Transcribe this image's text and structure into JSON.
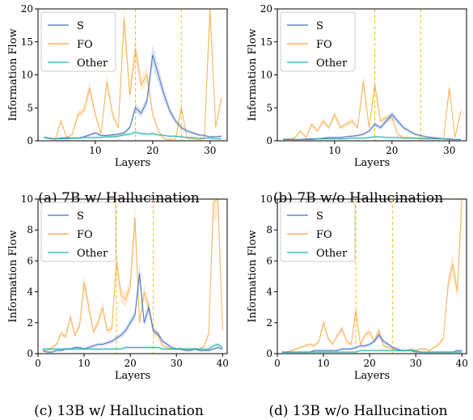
{
  "figure": {
    "colors": {
      "S": "#4472c4",
      "FO": "#f4a53a",
      "Other": "#20b2aa",
      "vline": "#f5c400"
    },
    "chart_data": [
      {
        "type": "line",
        "caption": "(a) 7B w/ Hallucination",
        "xlabel": "Layers",
        "ylabel": "Information Flow",
        "xlim": [
          0,
          33
        ],
        "ylim": [
          0,
          20
        ],
        "xticks": [
          "10",
          "20",
          "30"
        ],
        "yticks": [
          "0",
          "5",
          "10",
          "15",
          "20"
        ],
        "legend": "top-left",
        "grid": false,
        "vlines": [
          17,
          25
        ],
        "series": [
          {
            "name": "S",
            "x": [
              1,
              2,
              3,
              4,
              5,
              6,
              7,
              8,
              9,
              10,
              11,
              12,
              13,
              14,
              15,
              16,
              17,
              18,
              19,
              20,
              21,
              22,
              23,
              24,
              25,
              26,
              27,
              28,
              29,
              30,
              31,
              32
            ],
            "values": [
              0.5,
              0.4,
              0.3,
              0.4,
              0.5,
              0.4,
              0.4,
              0.6,
              0.9,
              1.2,
              0.8,
              0.8,
              0.9,
              1.0,
              1.2,
              2.0,
              5.0,
              4.2,
              6.0,
              13.0,
              10.0,
              7.0,
              4.5,
              3.0,
              2.0,
              1.5,
              1.2,
              0.9,
              0.8,
              0.6,
              0.6,
              0.7
            ]
          },
          {
            "name": "FO",
            "x": [
              1,
              2,
              3,
              4,
              5,
              6,
              7,
              8,
              9,
              10,
              11,
              12,
              13,
              14,
              15,
              16,
              17,
              18,
              19,
              20,
              21,
              22,
              23,
              24,
              25,
              26,
              27,
              28,
              29,
              30,
              31,
              32
            ],
            "values": [
              0.5,
              0.3,
              0.2,
              3.0,
              0.5,
              1.0,
              4.0,
              4.5,
              8.0,
              4.0,
              1.0,
              9.0,
              4.0,
              2.0,
              18.5,
              7.0,
              14.0,
              8.5,
              10.0,
              4.0,
              1.5,
              0.3,
              0.2,
              0.3,
              5.0,
              0.4,
              0.3,
              0.2,
              0.3,
              20.0,
              2.0,
              6.5
            ]
          },
          {
            "name": "Other",
            "x": [
              1,
              2,
              3,
              4,
              5,
              6,
              7,
              8,
              9,
              10,
              11,
              12,
              13,
              14,
              15,
              16,
              17,
              18,
              19,
              20,
              21,
              22,
              23,
              24,
              25,
              26,
              27,
              28,
              29,
              30,
              31,
              32
            ],
            "values": [
              0.5,
              0.4,
              0.3,
              0.3,
              0.3,
              0.4,
              0.4,
              0.5,
              0.5,
              0.5,
              0.5,
              0.6,
              0.6,
              0.7,
              0.9,
              1.0,
              1.3,
              1.1,
              1.0,
              1.1,
              0.9,
              0.8,
              0.7,
              0.7,
              0.6,
              0.5,
              0.5,
              0.4,
              0.4,
              0.4,
              0.3,
              0.3
            ]
          }
        ]
      },
      {
        "type": "line",
        "caption": "(b) 7B w/o Hallucination",
        "xlabel": "Layers",
        "ylabel": "Information Flow",
        "xlim": [
          0,
          33
        ],
        "ylim": [
          0,
          20
        ],
        "xticks": [
          "10",
          "20",
          "30"
        ],
        "yticks": [
          "0",
          "5",
          "10",
          "15",
          "20"
        ],
        "legend": "top-left",
        "grid": false,
        "vlines": [
          17,
          25
        ],
        "series": [
          {
            "name": "S",
            "x": [
              1,
              2,
              3,
              4,
              5,
              6,
              7,
              8,
              9,
              10,
              11,
              12,
              13,
              14,
              15,
              16,
              17,
              18,
              19,
              20,
              21,
              22,
              23,
              24,
              25,
              26,
              27,
              28,
              29,
              30,
              31,
              32
            ],
            "values": [
              0.2,
              0.2,
              0.2,
              0.2,
              0.3,
              0.3,
              0.3,
              0.4,
              0.5,
              0.5,
              0.5,
              0.6,
              0.7,
              0.8,
              1.0,
              1.5,
              2.5,
              2.0,
              3.0,
              4.0,
              3.0,
              2.0,
              1.5,
              1.0,
              0.8,
              0.6,
              0.5,
              0.4,
              0.3,
              0.3,
              0.2,
              0.2
            ]
          },
          {
            "name": "FO",
            "x": [
              1,
              2,
              3,
              4,
              5,
              6,
              7,
              8,
              9,
              10,
              11,
              12,
              13,
              14,
              15,
              16,
              17,
              18,
              19,
              20,
              21,
              22,
              23,
              24,
              25,
              26,
              27,
              28,
              29,
              30,
              31,
              32
            ],
            "values": [
              0.3,
              0.3,
              0.4,
              1.5,
              0.5,
              2.5,
              1.5,
              3.0,
              2.0,
              4.0,
              2.0,
              2.5,
              3.0,
              2.0,
              9.0,
              2.0,
              8.5,
              3.0,
              3.5,
              3.5,
              1.0,
              0.5,
              0.5,
              0.4,
              0.5,
              0.4,
              0.3,
              0.3,
              0.3,
              8.0,
              0.5,
              4.5
            ]
          },
          {
            "name": "Other",
            "x": [
              1,
              2,
              3,
              4,
              5,
              6,
              7,
              8,
              9,
              10,
              11,
              12,
              13,
              14,
              15,
              16,
              17,
              18,
              19,
              20,
              21,
              22,
              23,
              24,
              25,
              26,
              27,
              28,
              29,
              30,
              31,
              32
            ],
            "values": [
              0.2,
              0.2,
              0.2,
              0.2,
              0.2,
              0.2,
              0.3,
              0.3,
              0.3,
              0.3,
              0.3,
              0.3,
              0.4,
              0.4,
              0.4,
              0.5,
              0.6,
              0.6,
              0.5,
              0.5,
              0.5,
              0.4,
              0.4,
              0.4,
              0.3,
              0.3,
              0.3,
              0.3,
              0.3,
              0.2,
              0.2,
              0.2
            ]
          }
        ]
      },
      {
        "type": "line",
        "caption": "(c) 13B w/ Hallucination",
        "xlabel": "Layers",
        "ylabel": "Information Flow",
        "xlim": [
          0,
          41
        ],
        "ylim": [
          0,
          10
        ],
        "xticks": [
          "0",
          "10",
          "20",
          "30",
          "40"
        ],
        "yticks": [
          "0",
          "2",
          "4",
          "6",
          "8",
          "10"
        ],
        "legend": "top-left",
        "grid": false,
        "vlines": [
          17,
          25
        ],
        "series": [
          {
            "name": "S",
            "x": [
              1,
              2,
              3,
              4,
              5,
              6,
              7,
              8,
              9,
              10,
              11,
              12,
              13,
              14,
              15,
              16,
              17,
              18,
              19,
              20,
              21,
              22,
              23,
              24,
              25,
              26,
              27,
              28,
              29,
              30,
              31,
              32,
              33,
              34,
              35,
              36,
              37,
              38,
              39,
              40
            ],
            "values": [
              0.2,
              0.1,
              0.1,
              0.2,
              0.2,
              0.3,
              0.3,
              0.4,
              0.4,
              0.3,
              0.4,
              0.5,
              0.6,
              0.6,
              0.7,
              0.8,
              1.0,
              1.2,
              1.5,
              2.0,
              2.5,
              5.2,
              2.0,
              3.0,
              1.5,
              1.3,
              0.8,
              0.6,
              0.4,
              0.3,
              0.3,
              0.2,
              0.2,
              0.3,
              0.2,
              0.2,
              0.2,
              0.3,
              0.4,
              0.3
            ]
          },
          {
            "name": "FO",
            "x": [
              1,
              2,
              3,
              4,
              5,
              6,
              7,
              8,
              9,
              10,
              11,
              12,
              13,
              14,
              15,
              16,
              17,
              18,
              19,
              20,
              21,
              22,
              23,
              24,
              25,
              26,
              27,
              28,
              29,
              30,
              31,
              32,
              33,
              34,
              35,
              36,
              37,
              38,
              39,
              40
            ],
            "values": [
              0.2,
              0.2,
              0.4,
              0.6,
              1.3,
              1.1,
              2.4,
              1.2,
              1.8,
              4.6,
              3.0,
              1.4,
              2.0,
              3.0,
              1.5,
              1.6,
              6.0,
              3.8,
              3.5,
              4.4,
              8.8,
              2.0,
              4.0,
              3.0,
              1.4,
              1.2,
              0.5,
              0.4,
              0.3,
              0.3,
              0.3,
              0.3,
              0.3,
              0.3,
              0.3,
              0.5,
              1.3,
              9.8,
              10.0,
              1.5
            ]
          },
          {
            "name": "Other",
            "x": [
              1,
              2,
              3,
              4,
              5,
              6,
              7,
              8,
              9,
              10,
              11,
              12,
              13,
              14,
              15,
              16,
              17,
              18,
              19,
              20,
              21,
              22,
              23,
              24,
              25,
              26,
              27,
              28,
              29,
              30,
              31,
              32,
              33,
              34,
              35,
              36,
              37,
              38,
              39,
              40
            ],
            "values": [
              0.3,
              0.3,
              0.3,
              0.3,
              0.3,
              0.3,
              0.3,
              0.3,
              0.3,
              0.3,
              0.3,
              0.3,
              0.3,
              0.3,
              0.3,
              0.3,
              0.3,
              0.3,
              0.4,
              0.4,
              0.4,
              0.4,
              0.4,
              0.4,
              0.4,
              0.4,
              0.3,
              0.3,
              0.3,
              0.3,
              0.3,
              0.3,
              0.3,
              0.3,
              0.3,
              0.3,
              0.3,
              0.5,
              0.6,
              0.4
            ]
          }
        ]
      },
      {
        "type": "line",
        "caption": "(d) 13B w/o Hallucination",
        "xlabel": "Layers",
        "ylabel": "Information Flow",
        "xlim": [
          0,
          41
        ],
        "ylim": [
          0,
          10
        ],
        "xticks": [
          "0",
          "10",
          "20",
          "30",
          "40"
        ],
        "yticks": [
          "0",
          "2",
          "4",
          "6",
          "8",
          "10"
        ],
        "legend": "top-left",
        "grid": false,
        "vlines": [
          17,
          25
        ],
        "series": [
          {
            "name": "S",
            "x": [
              1,
              2,
              3,
              4,
              5,
              6,
              7,
              8,
              9,
              10,
              11,
              12,
              13,
              14,
              15,
              16,
              17,
              18,
              19,
              20,
              21,
              22,
              23,
              24,
              25,
              26,
              27,
              28,
              29,
              30,
              31,
              32,
              33,
              34,
              35,
              36,
              37,
              38,
              39,
              40
            ],
            "values": [
              0.1,
              0.1,
              0.1,
              0.1,
              0.1,
              0.1,
              0.1,
              0.2,
              0.2,
              0.2,
              0.2,
              0.2,
              0.2,
              0.3,
              0.3,
              0.3,
              0.4,
              0.5,
              0.5,
              0.6,
              0.8,
              1.2,
              0.8,
              0.6,
              0.4,
              0.3,
              0.2,
              0.2,
              0.2,
              0.1,
              0.1,
              0.1,
              0.1,
              0.1,
              0.1,
              0.1,
              0.1,
              0.1,
              0.2,
              0.2
            ]
          },
          {
            "name": "FO",
            "x": [
              1,
              2,
              3,
              4,
              5,
              6,
              7,
              8,
              9,
              10,
              11,
              12,
              13,
              14,
              15,
              16,
              17,
              18,
              19,
              20,
              21,
              22,
              23,
              24,
              25,
              26,
              27,
              28,
              29,
              30,
              31,
              32,
              33,
              34,
              35,
              36,
              37,
              38,
              39,
              40
            ],
            "values": [
              0.1,
              0.1,
              0.2,
              0.3,
              0.4,
              0.5,
              0.6,
              0.5,
              0.8,
              2.0,
              1.0,
              0.6,
              1.2,
              1.6,
              0.8,
              0.6,
              2.8,
              0.6,
              1.2,
              1.4,
              0.8,
              1.5,
              0.5,
              0.4,
              0.3,
              0.2,
              0.2,
              0.2,
              0.3,
              0.2,
              0.3,
              0.3,
              0.2,
              0.4,
              0.6,
              1.0,
              4.5,
              5.8,
              4.0,
              10.0
            ]
          },
          {
            "name": "Other",
            "x": [
              1,
              2,
              3,
              4,
              5,
              6,
              7,
              8,
              9,
              10,
              11,
              12,
              13,
              14,
              15,
              16,
              17,
              18,
              19,
              20,
              21,
              22,
              23,
              24,
              25,
              26,
              27,
              28,
              29,
              30,
              31,
              32,
              33,
              34,
              35,
              36,
              37,
              38,
              39,
              40
            ],
            "values": [
              0.1,
              0.1,
              0.1,
              0.1,
              0.1,
              0.1,
              0.1,
              0.1,
              0.1,
              0.1,
              0.1,
              0.1,
              0.1,
              0.1,
              0.1,
              0.1,
              0.1,
              0.2,
              0.2,
              0.2,
              0.2,
              0.2,
              0.2,
              0.2,
              0.2,
              0.2,
              0.2,
              0.2,
              0.2,
              0.2,
              0.1,
              0.1,
              0.1,
              0.1,
              0.1,
              0.1,
              0.1,
              0.1,
              0.1,
              0.1
            ]
          }
        ]
      }
    ]
  }
}
